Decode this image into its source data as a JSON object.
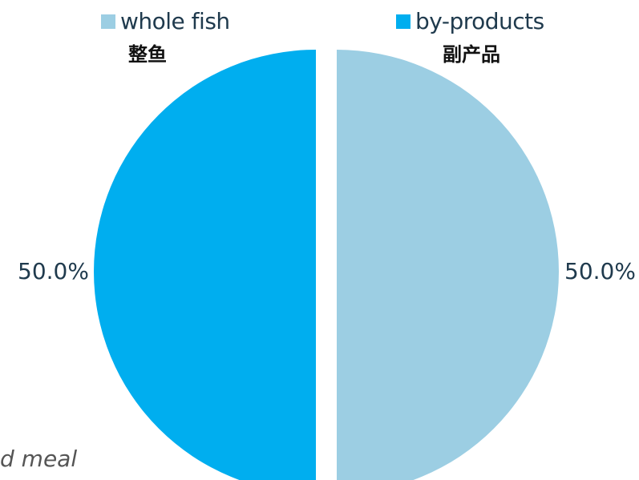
{
  "colors": {
    "whole_fish": "#9ccee3",
    "by_products": "#00aeef"
  },
  "legend": [
    {
      "label": "whole fish",
      "label_cn": "整鱼"
    },
    {
      "label": "by-products",
      "label_cn": "副产品"
    }
  ],
  "footnote": "d meal",
  "chart_data": {
    "type": "pie",
    "categories": [
      "whole fish",
      "by-products"
    ],
    "values": [
      50.0,
      50.0
    ],
    "data_labels": [
      "50.0%",
      "50.0%"
    ],
    "legend_position": "top"
  }
}
